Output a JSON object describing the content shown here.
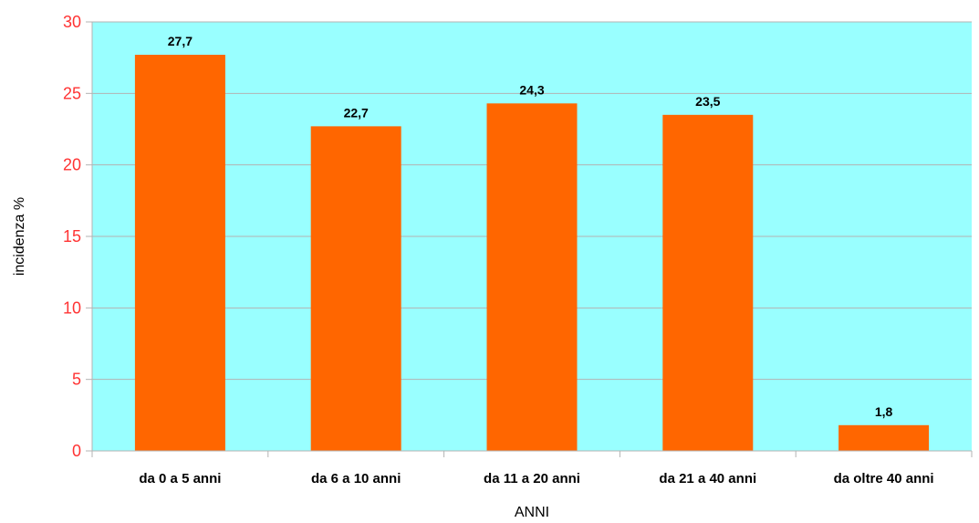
{
  "chart_data": {
    "type": "bar",
    "title": "",
    "xlabel": "ANNI",
    "ylabel": "incidenza %",
    "categories": [
      "da 0 a 5 anni",
      "da 6 a 10 anni",
      "da 11 a 20 anni",
      "da 21 a 40 anni",
      "da oltre 40 anni"
    ],
    "values": [
      27.7,
      22.7,
      24.3,
      23.5,
      1.8
    ],
    "data_labels": [
      "27,7",
      "22,7",
      "24,3",
      "23,5",
      "1,8"
    ],
    "y_ticks": [
      "0",
      "5",
      "10",
      "15",
      "20",
      "25",
      "30"
    ],
    "ylim": [
      0,
      30
    ],
    "grid": true,
    "legend": "none",
    "colors": {
      "plot_background": "#99ffff",
      "bar": "#ff6600",
      "grid": "#b3b3b3",
      "y_tick_text": "#ff3333",
      "axis": "#b3b3b3"
    }
  }
}
